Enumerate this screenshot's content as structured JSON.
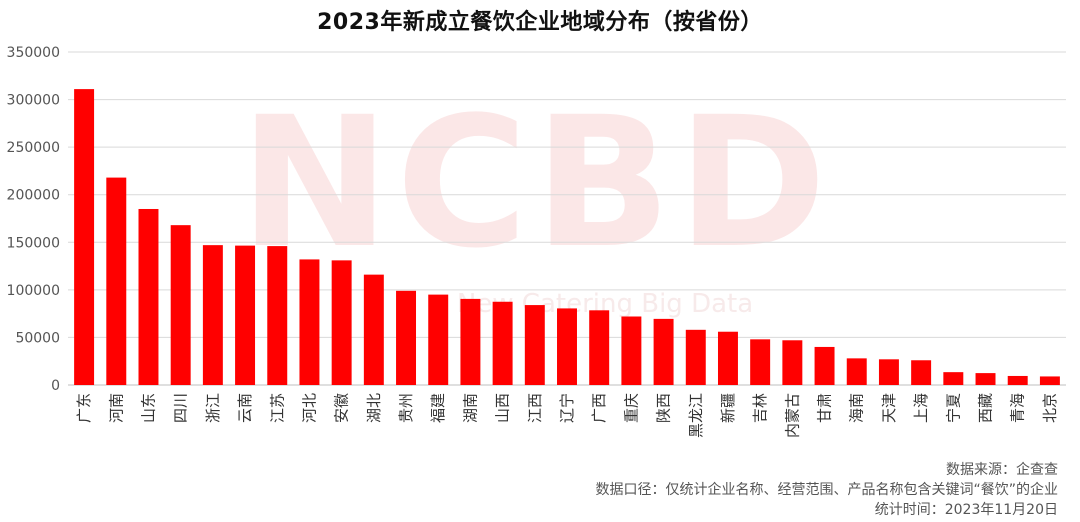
{
  "chart_data": {
    "type": "bar",
    "title": "2023年新成立餐饮企业地域分布（按省份）",
    "categories": [
      "广东",
      "河南",
      "山东",
      "四川",
      "浙江",
      "云南",
      "江苏",
      "河北",
      "安徽",
      "湖北",
      "贵州",
      "福建",
      "湖南",
      "山西",
      "江西",
      "辽宁",
      "广西",
      "重庆",
      "陕西",
      "黑龙江",
      "新疆",
      "吉林",
      "内蒙古",
      "甘肃",
      "海南",
      "天津",
      "上海",
      "宁夏",
      "西藏",
      "青海",
      "北京"
    ],
    "values": [
      311000,
      218000,
      185000,
      168000,
      147000,
      146500,
      146000,
      132000,
      131000,
      116000,
      99000,
      95000,
      90500,
      87500,
      84000,
      80500,
      78500,
      72000,
      69500,
      58000,
      56000,
      48000,
      47000,
      40000,
      28000,
      27000,
      26000,
      13500,
      12500,
      9500,
      9000
    ],
    "ylim": [
      0,
      350000
    ],
    "yticks": [
      "0",
      "50000",
      "100000",
      "150000",
      "200000",
      "250000",
      "300000",
      "350000"
    ],
    "xlabel": "",
    "ylabel": "",
    "grid": true,
    "legend": "none",
    "bar_color": "#ff0000"
  },
  "watermark": {
    "text": "NCBD",
    "subtitle": "New Catering Big Data",
    "color": "#f6c9c9"
  },
  "notes": {
    "source": "数据来源：企查查",
    "scope": "数据口径：仅统计企业名称、经营范围、产品名称包含关键词“餐饮”的企业",
    "time": "统计时间：2023年11月20日"
  }
}
